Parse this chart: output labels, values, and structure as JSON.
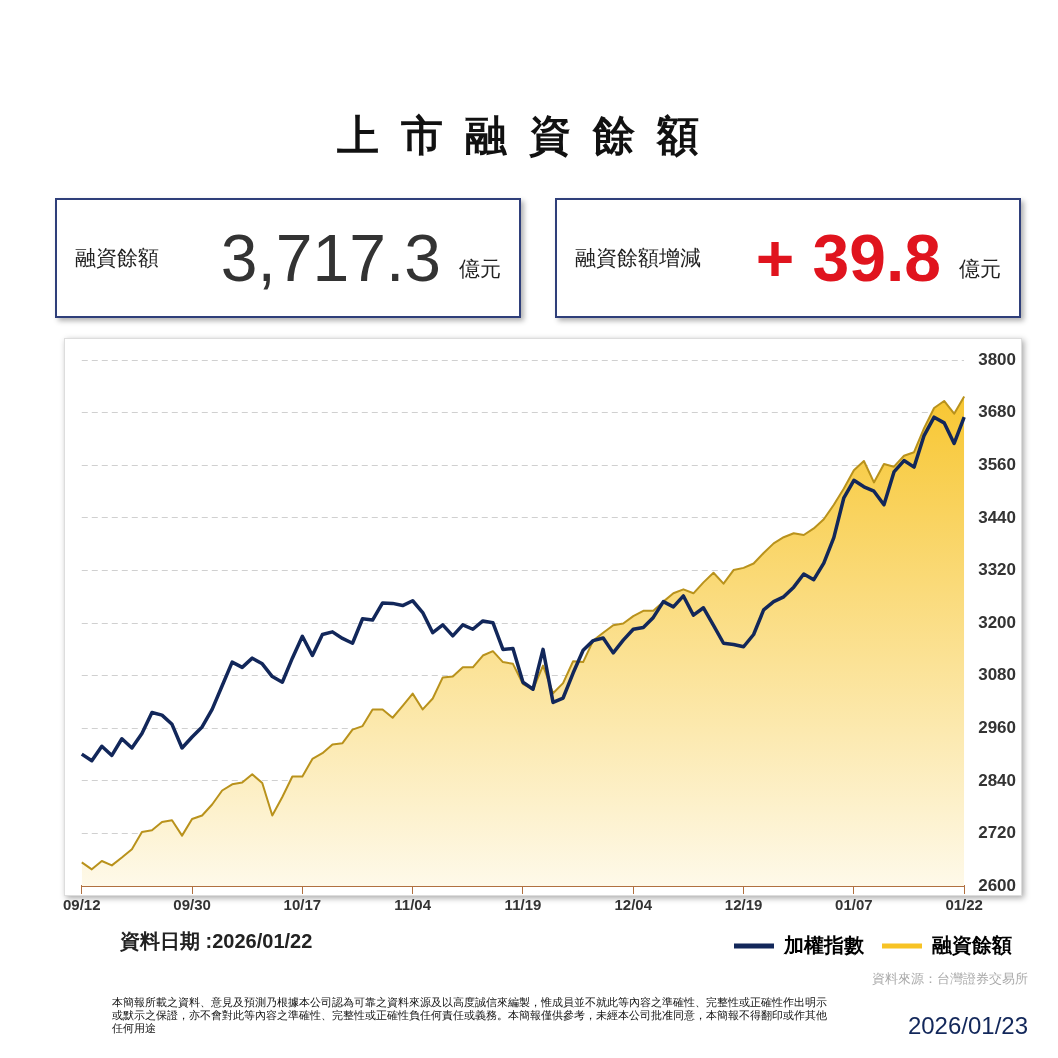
{
  "chart_data": {
    "type": "line",
    "title": "上市融資餘額",
    "categories": [
      "09/12",
      null,
      null,
      null,
      null,
      null,
      null,
      null,
      null,
      null,
      null,
      "09/30",
      null,
      null,
      null,
      null,
      null,
      null,
      null,
      null,
      null,
      null,
      "10/17",
      null,
      null,
      null,
      null,
      null,
      null,
      null,
      null,
      null,
      null,
      "11/04",
      null,
      null,
      null,
      null,
      null,
      null,
      null,
      null,
      null,
      null,
      "11/19",
      null,
      null,
      null,
      null,
      null,
      null,
      null,
      null,
      null,
      null,
      "12/04",
      null,
      null,
      null,
      null,
      null,
      null,
      null,
      null,
      null,
      null,
      "12/19",
      null,
      null,
      null,
      null,
      null,
      null,
      null,
      null,
      null,
      null,
      "01/07",
      null,
      null,
      null,
      null,
      null,
      null,
      null,
      null,
      null,
      null,
      "01/22"
    ],
    "series": [
      {
        "name": "加權指數",
        "color": "#12275a",
        "values": [
          2901,
          2886,
          2919,
          2898,
          2936,
          2915,
          2948,
          2996,
          2990,
          2969,
          2915,
          2940,
          2963,
          3003,
          3057,
          3111,
          3099,
          3120,
          3107,
          3078,
          3065,
          3120,
          3170,
          3126,
          3174,
          3180,
          3165,
          3154,
          3210,
          3207,
          3246,
          3245,
          3240,
          3251,
          3224,
          3178,
          3196,
          3171,
          3196,
          3186,
          3205,
          3201,
          3140,
          3142,
          3065,
          3049,
          3140,
          3019,
          3029,
          3086,
          3138,
          3160,
          3166,
          3132,
          3161,
          3186,
          3190,
          3213,
          3249,
          3237,
          3262,
          3218,
          3235,
          3195,
          3154,
          3151,
          3146,
          3174,
          3230,
          3249,
          3260,
          3282,
          3312,
          3299,
          3337,
          3395,
          3486,
          3526,
          3511,
          3501,
          3470,
          3545,
          3571,
          3556,
          3628,
          3670,
          3657,
          3610,
          3670
        ]
      },
      {
        "name": "融資餘額",
        "type": "area",
        "color": "#f7c325",
        "values": [
          2654,
          2638,
          2657,
          2647,
          2665,
          2684,
          2723,
          2727,
          2746,
          2750,
          2715,
          2753,
          2761,
          2786,
          2818,
          2832,
          2836,
          2855,
          2835,
          2761,
          2803,
          2850,
          2850,
          2890,
          2903,
          2923,
          2926,
          2957,
          2965,
          3003,
          3003,
          2984,
          3011,
          3039,
          3003,
          3028,
          3076,
          3078,
          3099,
          3099,
          3126,
          3136,
          3111,
          3107,
          3061,
          3049,
          3103,
          3040,
          3063,
          3113,
          3111,
          3160,
          3178,
          3195,
          3199,
          3216,
          3228,
          3228,
          3249,
          3268,
          3277,
          3268,
          3293,
          3315,
          3290,
          3321,
          3326,
          3336,
          3360,
          3382,
          3396,
          3405,
          3401,
          3416,
          3437,
          3470,
          3507,
          3549,
          3570,
          3521,
          3563,
          3557,
          3582,
          3590,
          3645,
          3691,
          3707,
          3678,
          3717.3
        ]
      }
    ],
    "ylim": [
      2600,
      3800
    ],
    "yticks": [
      2600,
      2720,
      2840,
      2960,
      3080,
      3200,
      3320,
      3440,
      3560,
      3680,
      3800
    ],
    "grid": "y",
    "legend": "bottom right",
    "marker": "none",
    "annotations": [
      "融資餘額",
      "3,717.3",
      "億元",
      "融資餘額增減",
      "+ 39.8",
      "億元",
      "資料日期 :2026/01/22",
      "資料來源：台灣證券交易所",
      "本簡報所載之資料、意見及預測乃根據本公司認為可靠之資料來源及以高度誠信來編製，惟成員並不就此等內容之準確性、完整性或正確性作出明示或默示之保證，亦不會對此等內容之準確性、完整性或正確性負任何責任或義務。本簡報僅供參考，未經本公司批准同意，本簡報不得翻印或作其他任何用途",
      "2026/01/23"
    ]
  }
}
